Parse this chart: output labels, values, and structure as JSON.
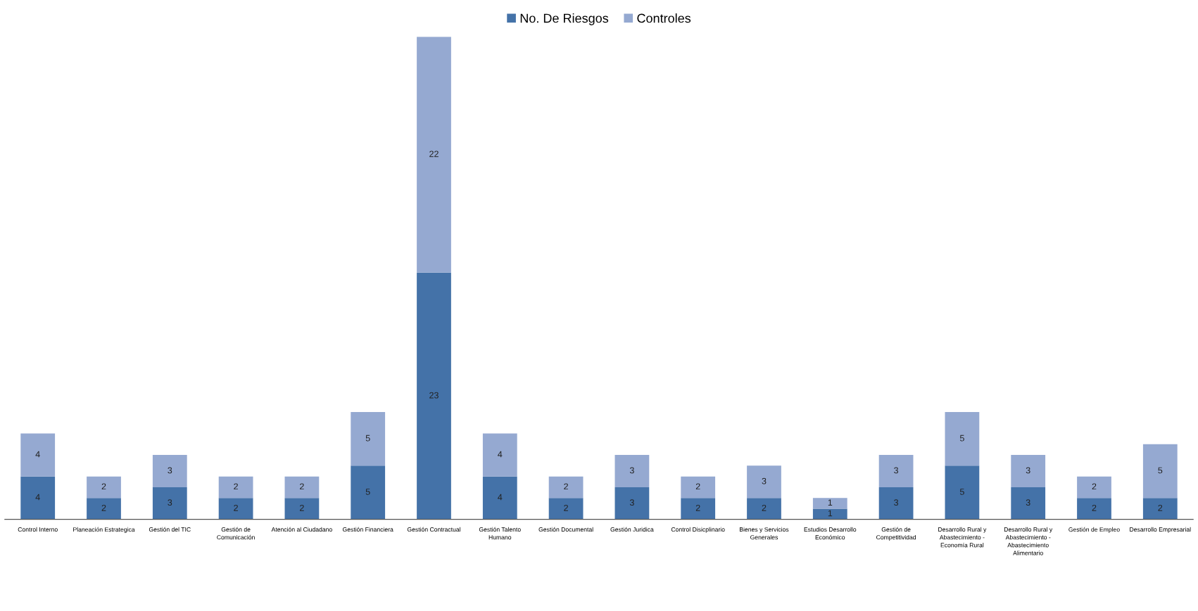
{
  "chart_data": {
    "type": "bar",
    "stacked": true,
    "data_labels": true,
    "legend": "top",
    "grid": false,
    "categories": [
      "Control Interno",
      "Planeación Estrategica",
      "Gestión del TIC",
      "Gestión de\nComunicación",
      "Atención al Ciudadano",
      "Gestión Financiera",
      "Gestión Contractual",
      "Gestión Talento\nHumano",
      "Gestión Documental",
      "Gestión Juridica",
      "Control Disicplinario",
      "Bienes y Servicios\nGenerales",
      "Estudios Desarrollo\nEconómico",
      "Gestión de\nCompetitividad",
      "Desarrollo Rural y\nAbastecimiento -\nEconomía Rural",
      "Desarrollo Rural y\nAbastecimiento -\nAbastecimiento\nAlimentario",
      "Gestión de Empleo",
      "Desarrollo Empresarial"
    ],
    "series": [
      {
        "name": "No. De Riesgos",
        "color": "#4472a8",
        "values": [
          4,
          2,
          3,
          2,
          2,
          5,
          23,
          4,
          2,
          3,
          2,
          2,
          1,
          3,
          5,
          3,
          2,
          2
        ]
      },
      {
        "name": "Controles",
        "color": "#95a9d1",
        "values": [
          4,
          2,
          3,
          2,
          2,
          5,
          22,
          4,
          2,
          3,
          2,
          3,
          1,
          3,
          5,
          3,
          2,
          5
        ]
      }
    ]
  }
}
